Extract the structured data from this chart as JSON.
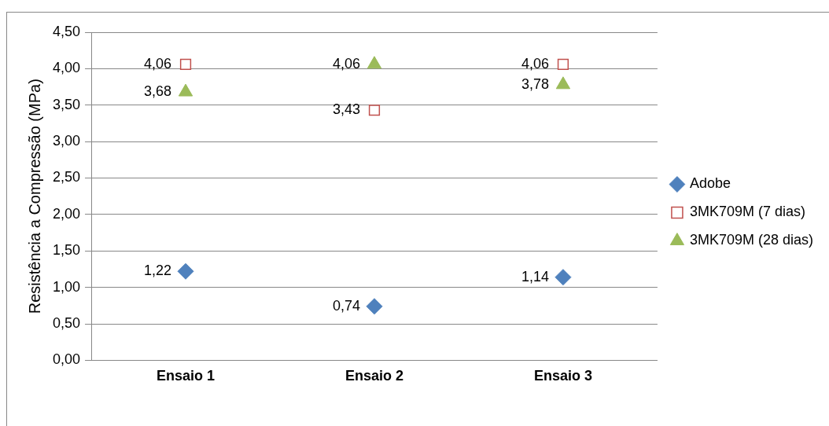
{
  "chart_data": {
    "type": "scatter",
    "ylabel": "Resistência a Compressão (MPa)",
    "categories": [
      "Ensaio 1",
      "Ensaio 2",
      "Ensaio 3"
    ],
    "series": [
      {
        "name": "Adobe",
        "color": "#4f81bd",
        "marker": "diamond",
        "values": [
          1.22,
          0.74,
          1.14
        ],
        "value_labels": [
          "1,22",
          "0,74",
          "1,14"
        ]
      },
      {
        "name": "3MK709M (7 dias)",
        "color": "#c0504d",
        "marker": "square",
        "values": [
          4.06,
          3.43,
          4.06
        ],
        "value_labels": [
          "4,06",
          "3,43",
          "4,06"
        ]
      },
      {
        "name": "3MK709M (28 dias)",
        "color": "#9bbb59",
        "marker": "triangle",
        "values": [
          3.68,
          4.06,
          3.78
        ],
        "value_labels": [
          "3,68",
          "4,06",
          "3,78"
        ]
      }
    ],
    "ylim": [
      0,
      4.5
    ],
    "yticks": [
      {
        "value": 0,
        "label": "0,00"
      },
      {
        "value": 0.5,
        "label": "0,50"
      },
      {
        "value": 1,
        "label": "1,00"
      },
      {
        "value": 1.5,
        "label": "1,50"
      },
      {
        "value": 2,
        "label": "2,00"
      },
      {
        "value": 2.5,
        "label": "2,50"
      },
      {
        "value": 3,
        "label": "3,00"
      },
      {
        "value": 3.5,
        "label": "3,50"
      },
      {
        "value": 4,
        "label": "4,00"
      },
      {
        "value": 4.5,
        "label": "4,50"
      }
    ],
    "grid": "y",
    "legend": "right"
  }
}
